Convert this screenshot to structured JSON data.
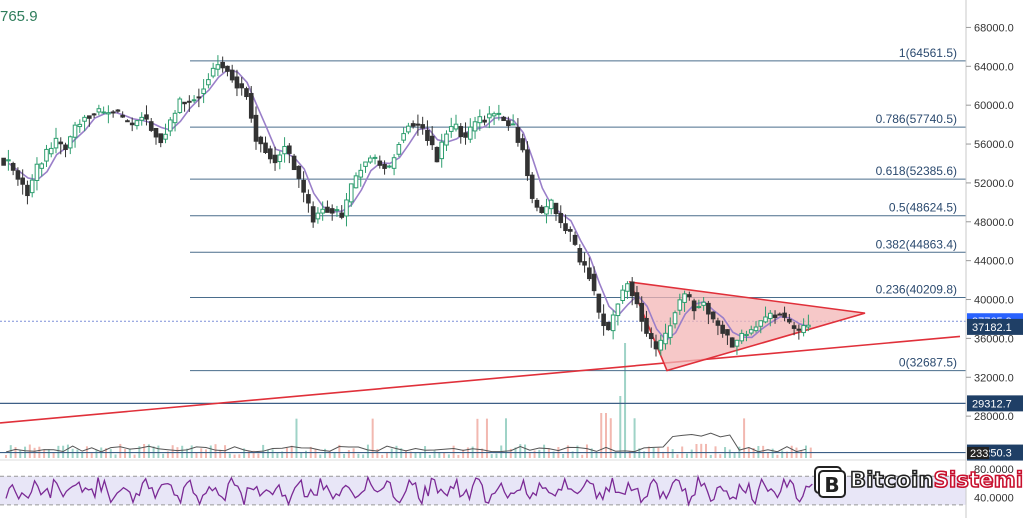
{
  "header": {
    "price_fragment": "765.9"
  },
  "colors": {
    "candle_up": "#2e9e6f",
    "candle_down": "#333333",
    "fib_line": "#4a6d8c",
    "trend_line": "#e0303a",
    "triangle_fill": "#f3b5b5",
    "ma_line": "#9a7fc9",
    "rsi_line": "#7b2a95",
    "rsi_band": "#e8e6f7",
    "volume_up": "#9fd3c7",
    "volume_down": "#f2b8b0"
  },
  "chart_data": {
    "type": "candlestick",
    "y_axis": {
      "ticks": [
        "68000.0",
        "64000.0",
        "60000.0",
        "56000.0",
        "52000.0",
        "48000.0",
        "44000.0",
        "40000.0",
        "36000.0",
        "32000.0",
        "28000.0"
      ],
      "ylim": [
        24000,
        70000
      ]
    },
    "fib_levels": [
      {
        "ratio": "1",
        "price": "64561.5",
        "value": 64561.5
      },
      {
        "ratio": "0.786",
        "price": "57740.5",
        "value": 57740.5
      },
      {
        "ratio": "0.618",
        "price": "52385.6",
        "value": 52385.6
      },
      {
        "ratio": "0.5",
        "price": "48624.5",
        "value": 48624.5
      },
      {
        "ratio": "0.382",
        "price": "44863.4",
        "value": 44863.4
      },
      {
        "ratio": "0.236",
        "price": "40209.8",
        "value": 40209.8
      },
      {
        "ratio": "0",
        "price": "32687.5",
        "value": 32687.5
      }
    ],
    "horizontal_levels": [
      {
        "label": "29312.7",
        "value": 29312.7
      },
      {
        "label": "24250.3",
        "value": 24250.3
      }
    ],
    "price_tags": [
      {
        "label": "37765.9",
        "value": 37765.9,
        "color": "#2962ff"
      },
      {
        "label": "37182.1",
        "value": 37182.1,
        "color": "#1f3f66"
      },
      {
        "label": "29312.7",
        "value": 29312.7,
        "color": "#1f3f66"
      },
      {
        "label": "24250.3",
        "value": 24250.3,
        "color": "#1f3f66"
      }
    ],
    "close_series": [
      54000,
      52500,
      51000,
      53500,
      55000,
      56200,
      55600,
      57800,
      58900,
      59300,
      59100,
      59500,
      58400,
      57900,
      59000,
      57600,
      56500,
      58200,
      60300,
      60500,
      61200,
      63000,
      64400,
      63600,
      62200,
      61200,
      56700,
      55500,
      54200,
      55800,
      53700,
      50800,
      48300,
      49500,
      49200,
      48600,
      51500,
      53700,
      54600,
      53900,
      53500,
      56400,
      58100,
      58000,
      56800,
      54500,
      57300,
      57800,
      56500,
      58200,
      58700,
      59100,
      58400,
      57700,
      55400,
      50200,
      48800,
      49900,
      47800,
      46600,
      43900,
      42600,
      38500,
      36800,
      39900,
      41800,
      39600,
      36500,
      34800,
      36100,
      38900,
      40500,
      39200,
      39600,
      37800,
      36900,
      35200,
      36300,
      36800,
      37700,
      38400,
      38600,
      37300,
      36600,
      37765.9
    ],
    "rsi": {
      "ticks": [
        "80.0000",
        "40.0000"
      ],
      "ylim": [
        20,
        90
      ]
    },
    "volume_badge": "233"
  },
  "logo": {
    "text_main": "Bitcoin",
    "text_accent": "Sistemi"
  }
}
